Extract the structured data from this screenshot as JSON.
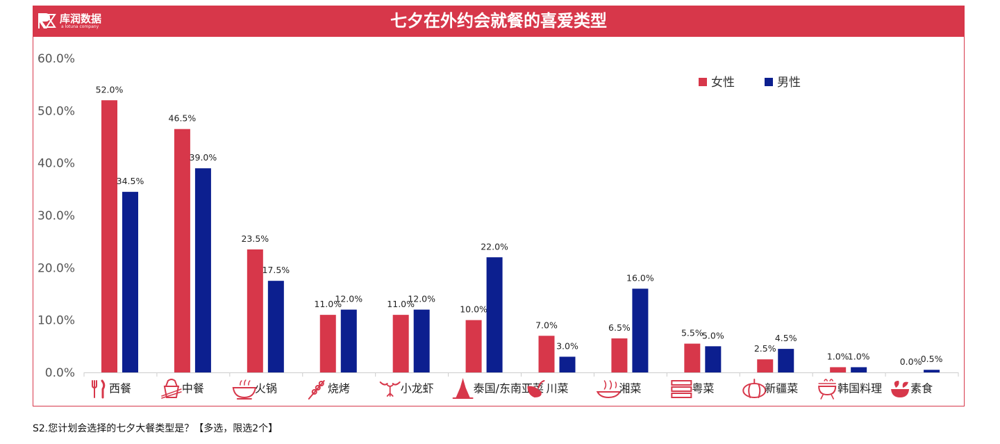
{
  "header": {
    "title": "七夕在外约会就餐的喜爱类型",
    "logo_name": "库润数据",
    "logo_sub": "a lotuna company"
  },
  "footnote": "S2.您计划会选择的七夕大餐类型是？【多选，限选2个】",
  "colors": {
    "accent": "#d7374a",
    "female": "#d7374a",
    "male": "#0c1f8f"
  },
  "chart_data": {
    "type": "bar",
    "title": "七夕在外约会就餐的喜爱类型",
    "categories": [
      "西餐",
      "中餐",
      "火锅",
      "烧烤",
      "小龙虾",
      "泰国/东南亚菜",
      "川菜",
      "湘菜",
      "粤菜",
      "新疆菜",
      "韩国料理",
      "素食"
    ],
    "category_icons": [
      "fork-knife-icon",
      "takeout-box-icon",
      "hotpot-icon",
      "skewer-icon",
      "crayfish-icon",
      "thai-pagoda-icon",
      "chili-icon",
      "steaming-dish-icon",
      "steamer-icon",
      "pumpkin-icon",
      "bbq-grill-icon",
      "vegetable-bowl-icon"
    ],
    "series": [
      {
        "name": "女性",
        "color": "#d7374a",
        "values": [
          52.0,
          46.5,
          23.5,
          11.0,
          11.0,
          10.0,
          7.0,
          6.5,
          5.5,
          2.5,
          1.0,
          0.0
        ]
      },
      {
        "name": "男性",
        "color": "#0c1f8f",
        "values": [
          34.5,
          39.0,
          17.5,
          12.0,
          12.0,
          22.0,
          3.0,
          16.0,
          5.0,
          4.5,
          1.0,
          0.5
        ]
      }
    ],
    "ylim": [
      0,
      60
    ],
    "yticks": [
      0,
      10,
      20,
      30,
      40,
      50,
      60
    ],
    "value_format": "percent-1dp",
    "grid": false,
    "legend_position": "top-right",
    "xlabel": "",
    "ylabel": ""
  }
}
